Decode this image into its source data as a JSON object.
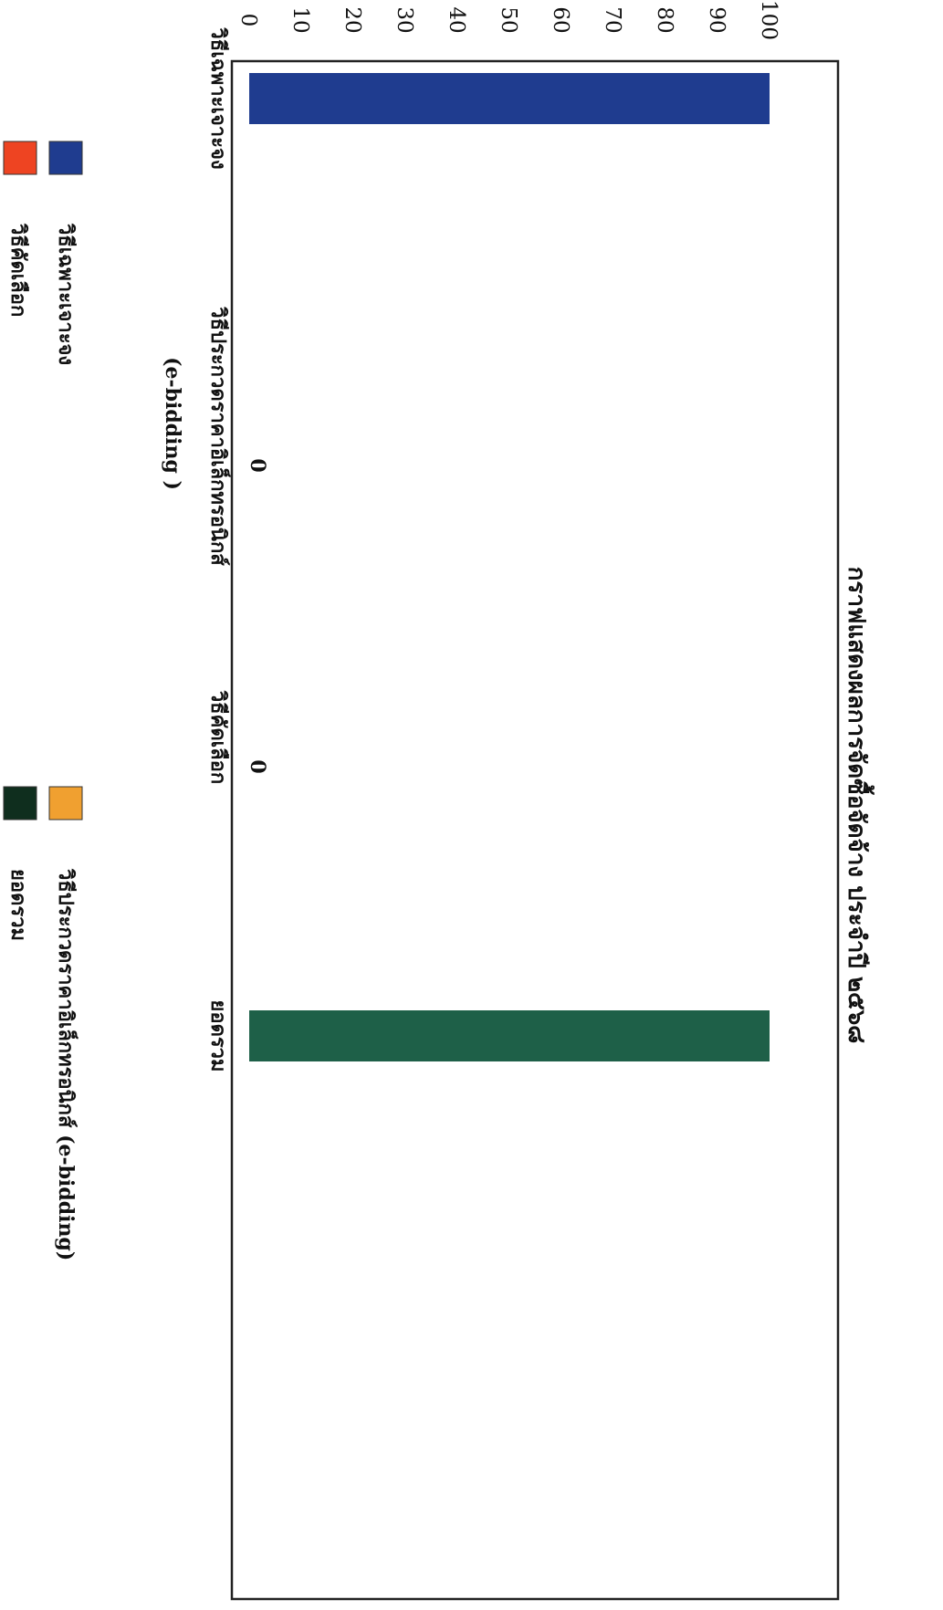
{
  "chart_data": {
    "type": "bar",
    "title": "กราฟแสดงผลการจัดซื้อจัดจ้าง ประจำปี ๒๕๖๘",
    "xlabel": "",
    "ylabel": "",
    "categories": [
      "วิธีเฉพาะเจาะจง",
      "วิธีประกวดราคาอิเล็กทรอนิกส์",
      "วิธีคัดเลือก",
      "ยอดรวม"
    ],
    "category_sublabels": [
      "",
      "(e-bidding )",
      "",
      ""
    ],
    "values": [
      100,
      0,
      0,
      100
    ],
    "bar_colors": [
      "#1f3c8f",
      "#f0a030",
      "#ee4422",
      "#1e6048"
    ],
    "data_labels": [
      "",
      "0",
      "0",
      ""
    ],
    "ylim": [
      0,
      100
    ],
    "yticks": [
      0,
      10,
      20,
      30,
      40,
      50,
      60,
      70,
      80,
      90,
      100
    ],
    "orientation": "rotated-90-clockwise",
    "legend": {
      "placement": "bottom",
      "entries": [
        {
          "label": "วิธีเฉพาะเจาะจง",
          "color": "#1f3c8f"
        },
        {
          "label": "วิธีคัดเลือก",
          "color": "#ee4422"
        },
        {
          "label": "วิธีประกวดราคาอิเล็กทรอนิกส์ (e-bidding)",
          "color": "#f0a030"
        },
        {
          "label": "ยอดรวม",
          "color": "#0f2e1e"
        }
      ]
    }
  }
}
